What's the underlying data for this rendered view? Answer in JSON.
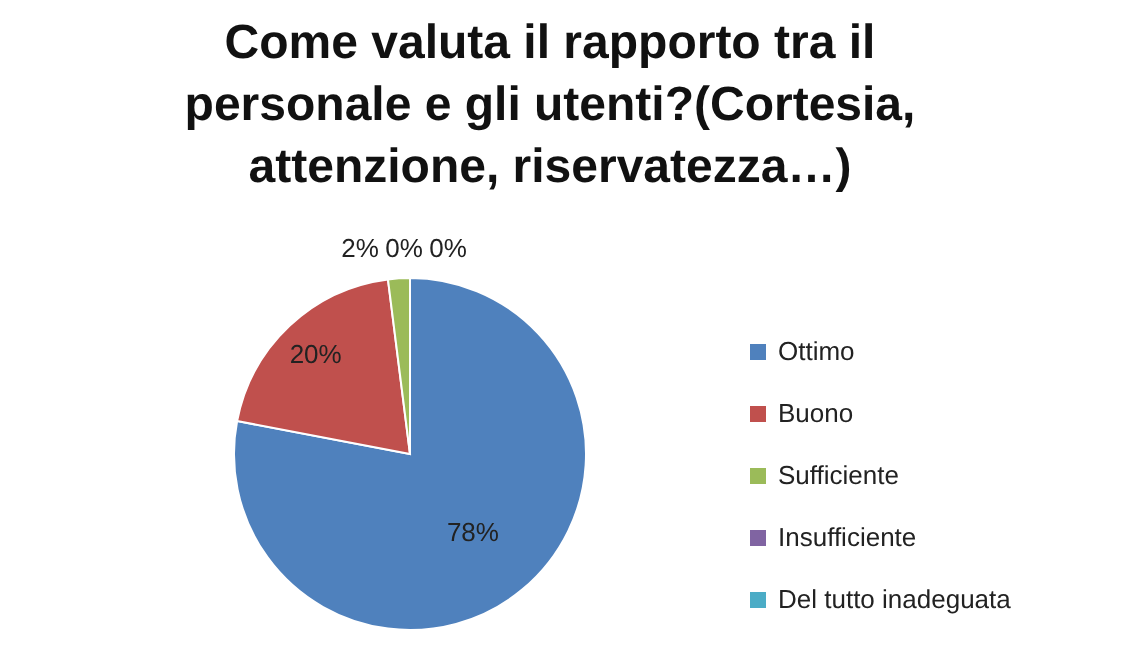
{
  "chart_data": {
    "type": "pie",
    "title": "Come valuta il rapporto tra il personale e gli utenti?(Cortesia, attenzione, riservatezza…)",
    "categories": [
      "Ottimo",
      "Buono",
      "Sufficiente",
      "Insufficiente",
      "Del tutto inadeguata"
    ],
    "values": [
      78,
      20,
      2,
      0,
      0
    ],
    "colors": [
      "#4f81bd",
      "#c0504d",
      "#9bbb59",
      "#8064a2",
      "#4bacc6"
    ],
    "value_labels": [
      "78%",
      "20%",
      "2%",
      "0%",
      "0%"
    ],
    "legend": "right"
  }
}
